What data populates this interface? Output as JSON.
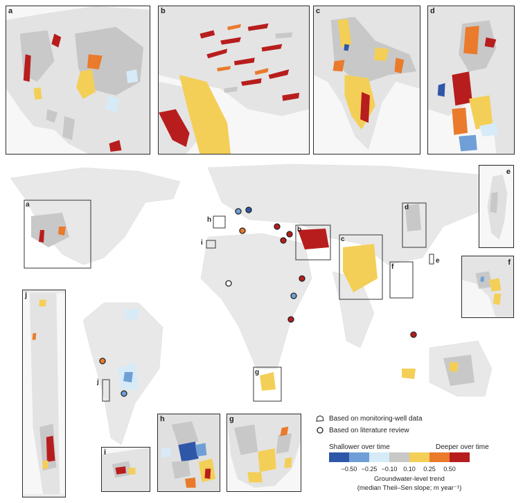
{
  "panels": {
    "a": "a",
    "b": "b",
    "c": "c",
    "d": "d",
    "e": "e",
    "f": "f",
    "g": "g",
    "h": "h",
    "i": "i",
    "j": "j"
  },
  "legend": {
    "monitoring": "Based on monitoring-well data",
    "literature": "Based on literature review",
    "shallower": "Shallower over time",
    "deeper": "Deeper over time",
    "ticks": [
      "−0.50",
      "−0.25",
      "−0.10",
      "0.10",
      "0.25",
      "0.50"
    ],
    "title": "Groundwater-level trend",
    "subtitle": "(median Theil–Sen slope; m year⁻¹)"
  },
  "colors": {
    "class_1": "#2f57a8",
    "class_2": "#6f9fd6",
    "class_3": "#d6ebf7",
    "class_4": "#c8c8c8",
    "class_5": "#f4cf57",
    "class_6": "#ea7a2c",
    "class_7": "#b81d1d",
    "land": "#e6e6e6",
    "ocean": "#ffffff",
    "frame": "#2a2a2a"
  }
}
